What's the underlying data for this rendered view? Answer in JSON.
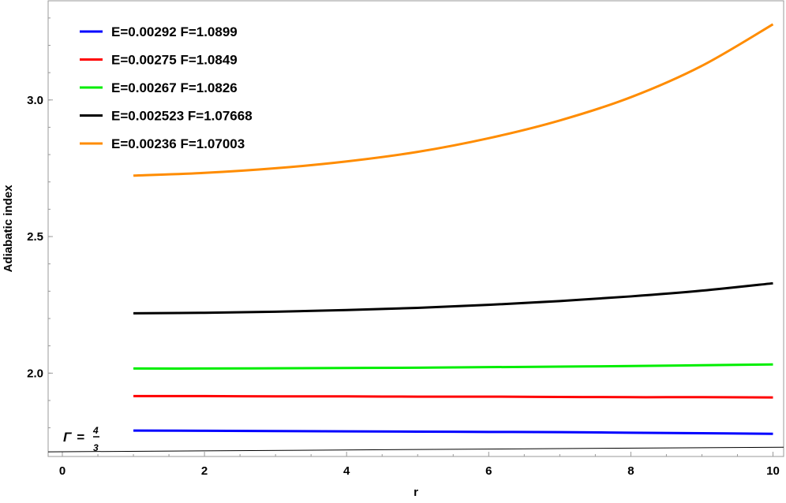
{
  "chart_data": {
    "type": "line",
    "title": "",
    "xlabel": "r",
    "ylabel": "Adiabatic index",
    "xlim": [
      -0.2,
      10.15
    ],
    "ylim": [
      1.695,
      3.363
    ],
    "grid": false,
    "legend_placement": "top-left",
    "x_ticks": [
      0,
      2,
      4,
      6,
      8,
      10
    ],
    "y_ticks": [
      2.0,
      2.5,
      3.0
    ],
    "x_tick_labels": [
      "0",
      "2",
      "4",
      "6",
      "8",
      "10"
    ],
    "y_tick_labels": [
      "2.0",
      "2.5",
      "3.0"
    ],
    "x": [
      1,
      2,
      3,
      4,
      5,
      6,
      7,
      8,
      9,
      10
    ],
    "series": [
      {
        "name": "E=0.00292 F=1.0899",
        "color": "#0000ff",
        "values": [
          1.79,
          1.789,
          1.788,
          1.787,
          1.786,
          1.785,
          1.784,
          1.782,
          1.78,
          1.778
        ]
      },
      {
        "name": "E=0.00275 F=1.0849",
        "color": "#ff0000",
        "values": [
          1.916,
          1.916,
          1.915,
          1.915,
          1.914,
          1.914,
          1.913,
          1.912,
          1.912,
          1.911
        ]
      },
      {
        "name": "E=0.00267 F=1.0826",
        "color": "#00ee00",
        "values": [
          2.017,
          2.017,
          2.018,
          2.019,
          2.02,
          2.022,
          2.024,
          2.026,
          2.029,
          2.032
        ]
      },
      {
        "name": "E=0.002523 F=1.07668",
        "color": "#000000",
        "values": [
          2.219,
          2.221,
          2.225,
          2.231,
          2.239,
          2.25,
          2.264,
          2.281,
          2.302,
          2.329
        ]
      },
      {
        "name": "E=0.00236 F=1.07003",
        "color": "#ff8c00",
        "values": [
          2.723,
          2.733,
          2.75,
          2.775,
          2.81,
          2.86,
          2.925,
          3.01,
          3.125,
          3.277
        ]
      }
    ],
    "reference_line": {
      "label_symbol": "Γ",
      "label_equals": "=",
      "label_numerator": "4",
      "label_denominator": "3",
      "x": [
        -0.2,
        10.15
      ],
      "values": [
        1.712,
        1.729
      ],
      "color": "#000000"
    }
  }
}
